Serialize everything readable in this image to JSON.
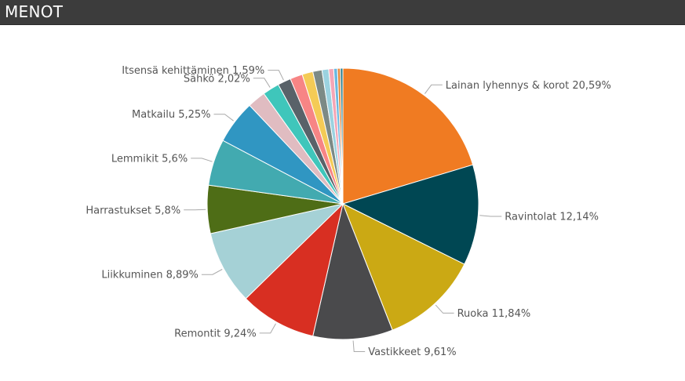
{
  "header": {
    "title": "MENOT"
  },
  "chart_data": {
    "type": "pie",
    "title": "MENOT",
    "series": [
      {
        "name": "Lainan lyhennys & korot",
        "value": 20.59,
        "label": "Lainan lyhennys & korot 20,59%",
        "color": "#f07b22"
      },
      {
        "name": "Ravintolat",
        "value": 12.14,
        "label": "Ravintolat 12,14%",
        "color": "#004753"
      },
      {
        "name": "Ruoka",
        "value": 11.84,
        "label": "Ruoka 11,84%",
        "color": "#cba914"
      },
      {
        "name": "Vastikkeet",
        "value": 9.61,
        "label": "Vastikkeet 9,61%",
        "color": "#4a4a4c"
      },
      {
        "name": "Remontit",
        "value": 9.24,
        "label": "Remontit 9,24%",
        "color": "#d82f22"
      },
      {
        "name": "Liikkuminen",
        "value": 8.89,
        "label": "Liikkuminen 8,89%",
        "color": "#a5d1d6"
      },
      {
        "name": "Harrastukset",
        "value": 5.8,
        "label": "Harrastukset 5,8%",
        "color": "#4e6d16"
      },
      {
        "name": "Lemmikit",
        "value": 5.6,
        "label": "Lemmikit 5,6%",
        "color": "#42aab0"
      },
      {
        "name": "Matkailu",
        "value": 5.25,
        "label": "Matkailu 5,25%",
        "color": "#3096c2"
      },
      {
        "name": "",
        "value": 2.2,
        "label": "",
        "color": "#e0bcc1"
      },
      {
        "name": "Sähkö",
        "value": 2.02,
        "label": "Sähkö 2,02%",
        "color": "#3fc6bb"
      },
      {
        "name": "Itsensä kehittäminen",
        "value": 1.59,
        "label": "Itsensä kehittäminen 1,59%",
        "color": "#596269"
      },
      {
        "name": "",
        "value": 1.5,
        "label": "",
        "color": "#f78585"
      },
      {
        "name": "",
        "value": 1.3,
        "label": "",
        "color": "#f4cb56"
      },
      {
        "name": "",
        "value": 1.1,
        "label": "",
        "color": "#7c8a86"
      },
      {
        "name": "",
        "value": 0.8,
        "label": "",
        "color": "#9bd2e0"
      },
      {
        "name": "",
        "value": 0.6,
        "label": "",
        "color": "#f4a6b6"
      },
      {
        "name": "",
        "value": 0.45,
        "label": "",
        "color": "#6ab8e0"
      },
      {
        "name": "",
        "value": 0.35,
        "label": "",
        "color": "#e4893c"
      },
      {
        "name": "",
        "value": 0.3,
        "label": "",
        "color": "#2a7f8f"
      }
    ]
  }
}
